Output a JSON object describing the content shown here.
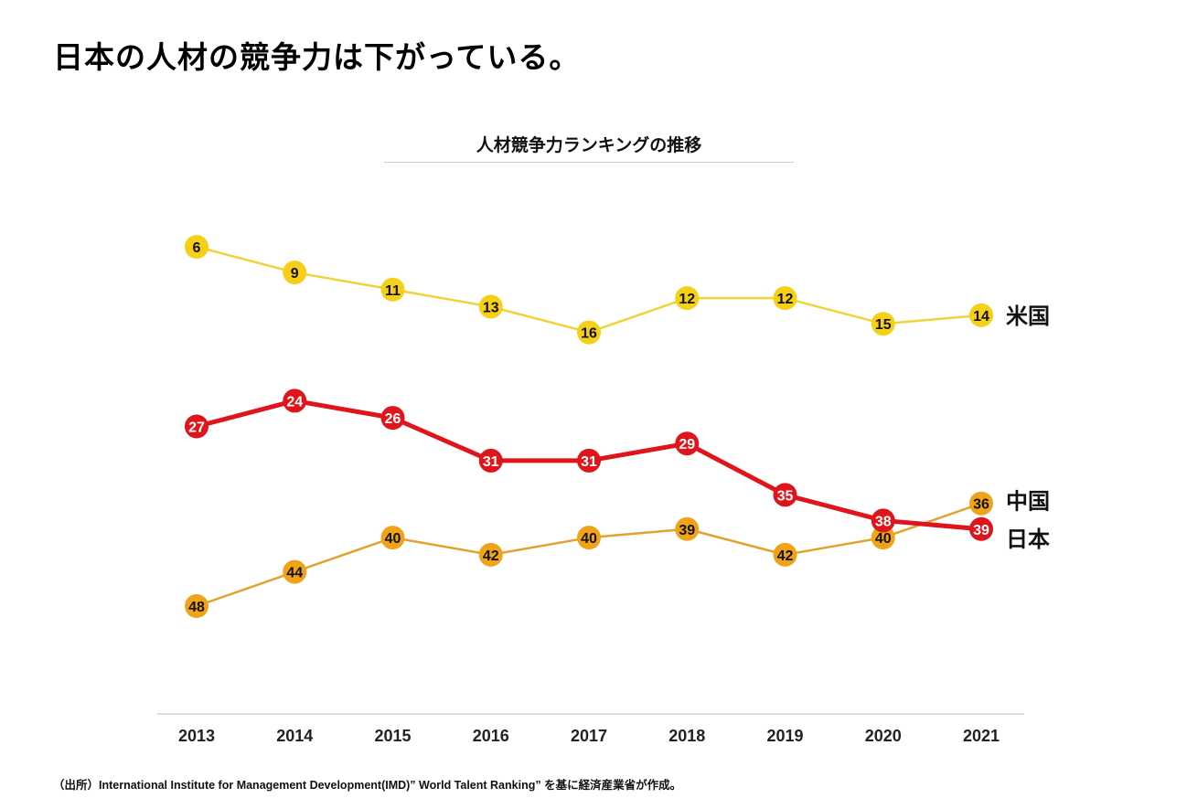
{
  "title": "日本の人材の競争力は下がっている。",
  "source": "（出所）International Institute for Management Development(IMD)” World Talent Ranking” を基に経済産業省が作成。",
  "chart_data": {
    "type": "line",
    "title": "人材競争力ランキングの推移",
    "xlabel": "",
    "ylabel": "",
    "y_axis": "rank, inverted (1 at top), no tick labels",
    "ylim": [
      6,
      48
    ],
    "grid": false,
    "legend": "inline labels at right end of lines",
    "categories": [
      "2013",
      "2014",
      "2015",
      "2016",
      "2017",
      "2018",
      "2019",
      "2020",
      "2021"
    ],
    "series": [
      {
        "name": "中国",
        "values": [
          48,
          44,
          40,
          42,
          40,
          39,
          42,
          40,
          36
        ],
        "color": "#f0a317",
        "line_color": "#e2a32e",
        "label_color": "#111111"
      },
      {
        "name": "日本",
        "values": [
          27,
          24,
          26,
          31,
          31,
          29,
          35,
          38,
          39
        ],
        "color": "#e0141b",
        "line_color": "#e0141b",
        "label_color": "#ffffff"
      },
      {
        "name": "米国",
        "values": [
          6,
          9,
          11,
          13,
          16,
          12,
          12,
          15,
          14
        ],
        "color": "#f5d016",
        "line_color": "#f0d33a",
        "label_color": "#111111"
      }
    ]
  }
}
